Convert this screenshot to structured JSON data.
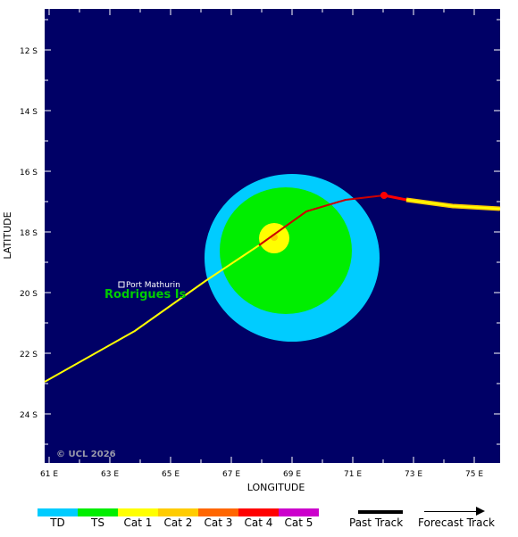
{
  "map": {
    "xlabel": "LONGITUDE",
    "ylabel": "LATITUDE",
    "copyright": "© UCL 2026",
    "lon_ticks": [
      "61 E",
      "63 E",
      "65 E",
      "67 E",
      "69 E",
      "71 E",
      "73 E",
      "75 E"
    ],
    "lat_ticks": [
      "12 S",
      "14 S",
      "16 S",
      "18 S",
      "20 S",
      "22 S",
      "24 S"
    ],
    "colors": {
      "ocean": "#000066",
      "td": "#00ccff",
      "ts": "#00ee00",
      "cat1": "#ffff00",
      "cat2": "#ffcc00",
      "cat4": "#ff0000",
      "past_track_line": "#cc0000"
    },
    "place": {
      "name": "Port Mathurin",
      "island": "Rodrigues Is",
      "island_color": "#00cc00"
    }
  },
  "legend": {
    "categories": [
      {
        "label": "TD",
        "color": "#00ccff"
      },
      {
        "label": "TS",
        "color": "#00ee00"
      },
      {
        "label": "Cat 1",
        "color": "#ffff00"
      },
      {
        "label": "Cat 2",
        "color": "#ffcc00"
      },
      {
        "label": "Cat 3",
        "color": "#ff6600"
      },
      {
        "label": "Cat 4",
        "color": "#ff0000"
      },
      {
        "label": "Cat 5",
        "color": "#cc00cc"
      }
    ],
    "past_track": "Past Track",
    "forecast_track": "Forecast Track"
  }
}
